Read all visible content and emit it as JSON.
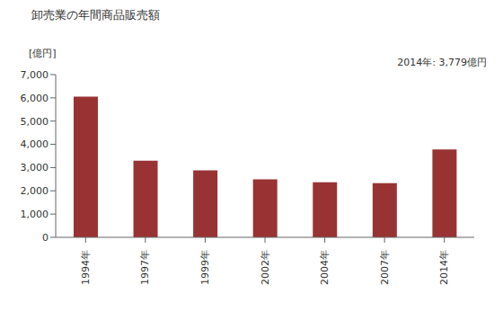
{
  "chart_data": {
    "type": "bar",
    "title": "卸売業の年間商品販売額",
    "y_label": "[億円]",
    "annotation": "2014年: 3,779億円",
    "categories": [
      "1994年",
      "1997年",
      "1999年",
      "2002年",
      "2004年",
      "2007年",
      "2014年"
    ],
    "values": [
      6050,
      3300,
      2880,
      2490,
      2370,
      2330,
      3779
    ],
    "color": "#993333",
    "ylim": [
      0,
      7000
    ],
    "yticks": [
      0,
      {
        "value": 1000,
        "label": "1,000"
      },
      {
        "value": 2000,
        "label": "2,000"
      },
      {
        "value": 3000,
        "label": "3,000"
      },
      {
        "value": 4000,
        "label": "4,000"
      },
      {
        "value": 5000,
        "label": "5,000"
      },
      {
        "value": 6000,
        "label": "6,000"
      },
      {
        "value": 7000,
        "label": "7,000"
      }
    ],
    "grid": false
  }
}
